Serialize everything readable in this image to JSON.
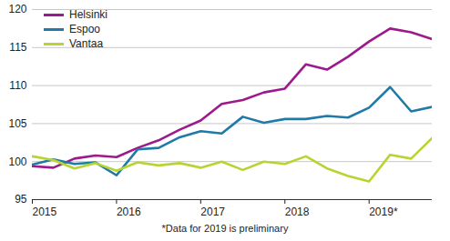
{
  "chart_data": {
    "type": "line",
    "x": [
      2015,
      2015.25,
      2015.5,
      2015.75,
      2016,
      2016.25,
      2016.5,
      2016.75,
      2017,
      2017.25,
      2017.5,
      2017.75,
      2018,
      2018.25,
      2018.5,
      2018.75,
      2019,
      2019.25,
      2019.5,
      2019.75
    ],
    "series": [
      {
        "name": "Helsinki",
        "color": "#9c1a8c",
        "values": [
          99.4,
          99.2,
          100.4,
          100.8,
          100.6,
          101.8,
          102.8,
          104.2,
          105.4,
          107.6,
          108.1,
          109.1,
          109.6,
          112.8,
          112.1,
          113.8,
          115.8,
          117.5,
          117.0,
          116.1
        ]
      },
      {
        "name": "Espoo",
        "color": "#1f7aa8",
        "values": [
          99.6,
          100.3,
          99.7,
          99.9,
          98.2,
          101.6,
          101.8,
          103.2,
          104.0,
          103.7,
          105.9,
          105.1,
          105.6,
          105.6,
          106.0,
          105.8,
          107.1,
          109.8,
          106.6,
          107.2
        ]
      },
      {
        "name": "Vantaa",
        "color": "#b8d432",
        "values": [
          100.7,
          100.2,
          99.1,
          99.8,
          98.8,
          99.9,
          99.5,
          99.8,
          99.2,
          100.0,
          98.9,
          100.0,
          99.7,
          100.7,
          99.1,
          98.1,
          97.4,
          100.9,
          100.4,
          103.1
        ]
      }
    ],
    "xlim": [
      2015,
      2019.75
    ],
    "xticks": [
      2015,
      2016,
      2017,
      2018,
      {
        "value": 2019,
        "label": "2019*"
      }
    ],
    "ylim": [
      95,
      120
    ],
    "yticks": [
      95,
      100,
      105,
      110,
      115,
      120
    ],
    "grid": true,
    "legend": "upper left",
    "caption": "*Data for 2019 is preliminary"
  }
}
